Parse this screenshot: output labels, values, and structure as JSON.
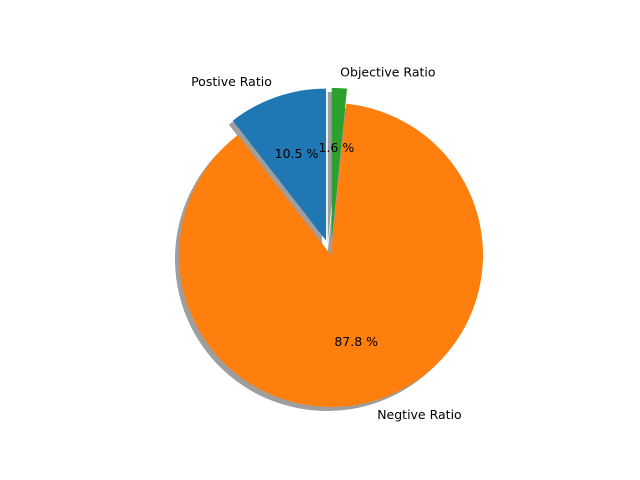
{
  "chart_data": {
    "type": "pie",
    "slices": [
      {
        "label": "Postive Ratio",
        "value": 10.5,
        "pct_label": "10.5 %",
        "color": "#1f77b4",
        "exploded": true
      },
      {
        "label": "Negtive Ratio",
        "value": 87.8,
        "pct_label": "87.8 %",
        "color": "#ff7f0e",
        "exploded": false
      },
      {
        "label": "Objective Ratio",
        "value": 1.6,
        "pct_label": "1.6 %",
        "color": "#2ca02c",
        "exploded": true
      }
    ],
    "start_angle_deg": 90,
    "direction": "counterclockwise",
    "shadow": true,
    "legend": "none"
  }
}
